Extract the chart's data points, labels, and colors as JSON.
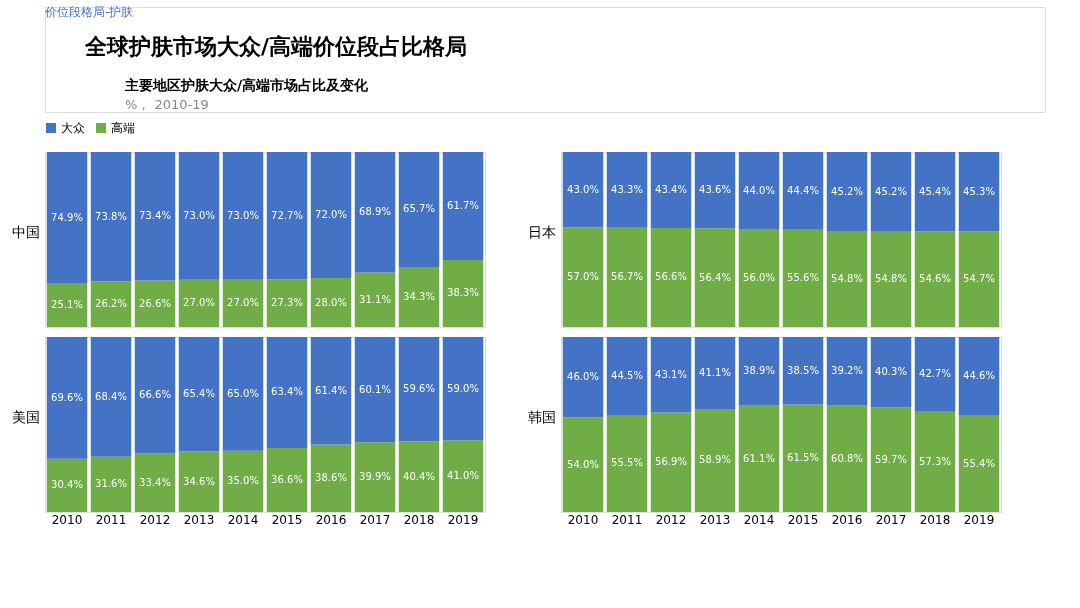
{
  "chart_data": [
    {
      "type": "bar",
      "title": "全球护肤市场大众/高端价位段占比格局",
      "subtitle": "主要地区护肤大众/高端市场占比及变化",
      "annotations": [
        "价位段格局-护肤",
        "%， 2010-19"
      ],
      "ylabel": "中国",
      "stacked": true,
      "legend": "top left",
      "tick_labels": false,
      "categories": [
        "2010",
        "2011",
        "2012",
        "2013",
        "2014",
        "2015",
        "2016",
        "2017",
        "2018",
        "2019"
      ],
      "series": [
        {
          "name": "高端",
          "color": "#70ad47",
          "values": [
            25.1,
            26.2,
            26.6,
            27.0,
            27.0,
            27.3,
            28.0,
            31.1,
            34.3,
            38.3
          ],
          "value_labels": [
            "25.1%",
            "26.2%",
            "26.6%",
            "27.0%",
            "27.0%",
            "27.3%",
            "28.0%",
            "31.1%",
            "34.3%",
            "38.3%"
          ]
        },
        {
          "name": "大众",
          "color": "#4472c4",
          "values": [
            74.9,
            73.8,
            73.4,
            73.0,
            73.0,
            72.7,
            72.0,
            68.9,
            65.7,
            61.7
          ],
          "value_labels": [
            "74.9%",
            "73.8%",
            "73.4%",
            "73.0%",
            "73.0%",
            "72.7%",
            "72.0%",
            "68.9%",
            "65.7%",
            "61.7%"
          ]
        }
      ]
    },
    {
      "type": "bar",
      "ylabel": "日本",
      "stacked": true,
      "tick_labels": false,
      "categories": [
        "2010",
        "2011",
        "2012",
        "2013",
        "2014",
        "2015",
        "2016",
        "2017",
        "2018",
        "2019"
      ],
      "series": [
        {
          "color": "#70ad47",
          "values": [
            57.0,
            56.7,
            56.6,
            56.4,
            56.0,
            55.6,
            54.8,
            54.8,
            54.6,
            54.7
          ],
          "value_labels": [
            "57.0%",
            "56.7%",
            "56.6%",
            "56.4%",
            "56.0%",
            "55.6%",
            "54.8%",
            "54.8%",
            "54.6%",
            "54.7%"
          ]
        },
        {
          "color": "#4472c4",
          "values": [
            43.0,
            43.3,
            43.4,
            43.6,
            44.0,
            44.4,
            45.2,
            45.2,
            45.4,
            45.3
          ],
          "value_labels": [
            "43.0%",
            "43.3%",
            "43.4%",
            "43.6%",
            "44.0%",
            "44.4%",
            "45.2%",
            "45.2%",
            "45.4%",
            "45.3%"
          ]
        }
      ]
    },
    {
      "type": "bar",
      "ylabel": "美国",
      "stacked": true,
      "tick_labels": "x",
      "categories": [
        "2010",
        "2011",
        "2012",
        "2013",
        "2014",
        "2015",
        "2016",
        "2017",
        "2018",
        "2019"
      ],
      "series": [
        {
          "color": "#70ad47",
          "values": [
            30.4,
            31.6,
            33.4,
            34.6,
            35.0,
            36.6,
            38.6,
            39.9,
            40.4,
            41.0
          ],
          "value_labels": [
            "30.4%",
            "31.6%",
            "33.4%",
            "34.6%",
            "35.0%",
            "36.6%",
            "38.6%",
            "39.9%",
            "40.4%",
            "41.0%"
          ]
        },
        {
          "color": "#4472c4",
          "values": [
            69.6,
            68.4,
            66.6,
            65.4,
            65.0,
            63.4,
            61.4,
            60.1,
            59.6,
            59.0
          ],
          "value_labels": [
            "69.6%",
            "68.4%",
            "66.6%",
            "65.4%",
            "65.0%",
            "63.4%",
            "61.4%",
            "60.1%",
            "59.6%",
            "59.0%"
          ]
        }
      ]
    },
    {
      "type": "bar",
      "ylabel": "韩国",
      "stacked": true,
      "tick_labels": "x",
      "categories": [
        "2010",
        "2011",
        "2012",
        "2013",
        "2014",
        "2015",
        "2016",
        "2017",
        "2018",
        "2019"
      ],
      "series": [
        {
          "color": "#70ad47",
          "values": [
            54.0,
            55.5,
            56.9,
            58.9,
            61.1,
            61.5,
            60.8,
            59.7,
            57.3,
            55.4
          ],
          "value_labels": [
            "54.0%",
            "55.5%",
            "56.9%",
            "58.9%",
            "61.1%",
            "61.5%",
            "60.8%",
            "59.7%",
            "57.3%",
            "55.4%"
          ]
        },
        {
          "color": "#4472c4",
          "values": [
            46.0,
            44.5,
            43.1,
            41.1,
            38.9,
            38.5,
            39.2,
            40.3,
            42.7,
            44.6
          ],
          "value_labels": [
            "46.0%",
            "44.5%",
            "43.1%",
            "41.1%",
            "38.9%",
            "38.5%",
            "39.2%",
            "40.3%",
            "42.7%",
            "44.6%"
          ]
        }
      ]
    }
  ]
}
